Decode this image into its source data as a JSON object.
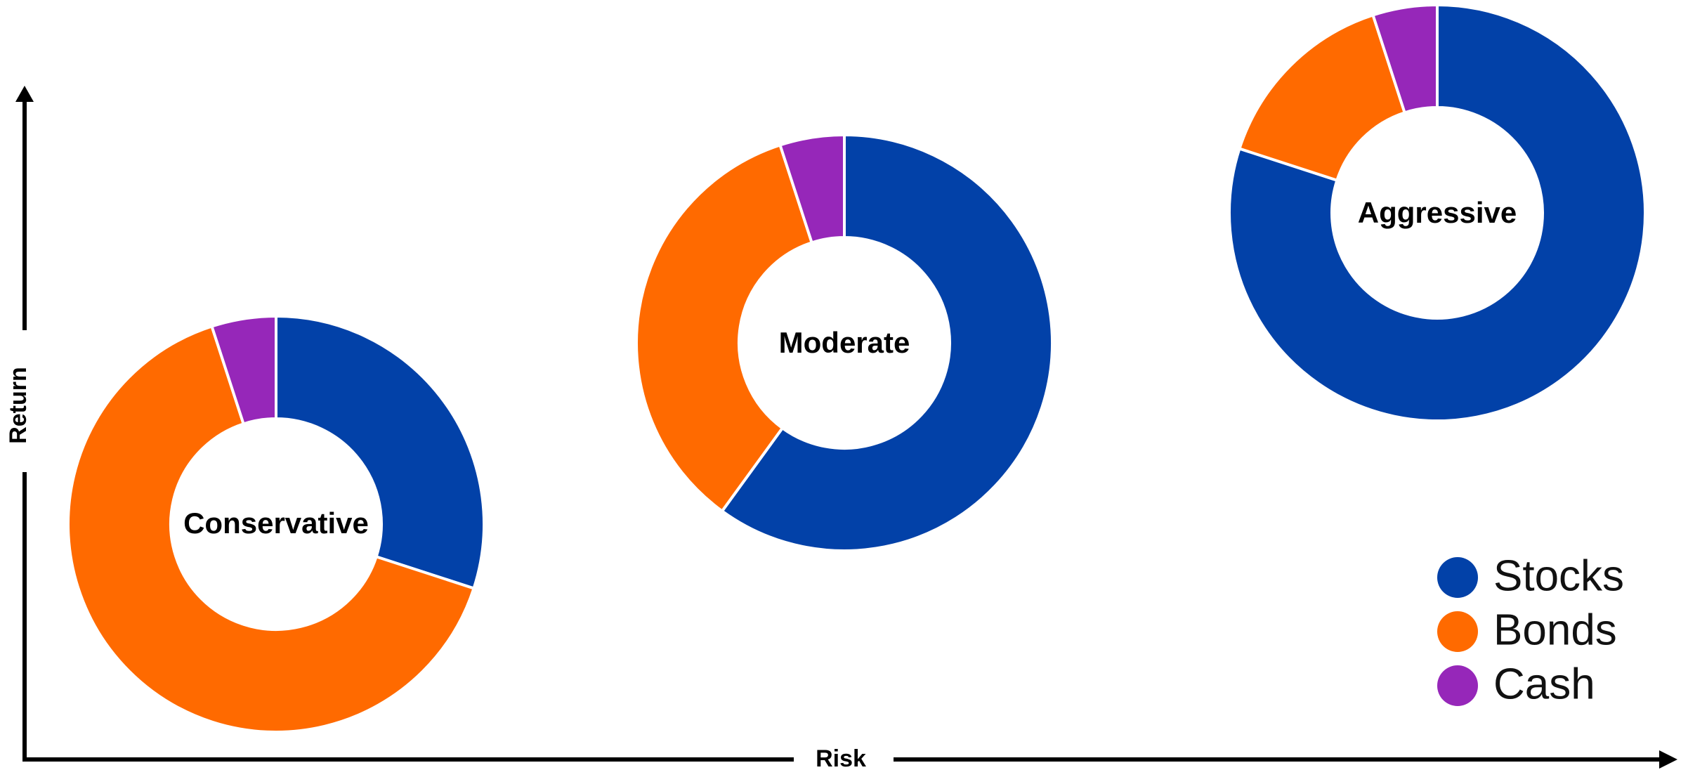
{
  "chart_data": {
    "type": "pie",
    "xlabel": "Risk",
    "ylabel": "Return",
    "legend_position": "bottom-right",
    "series": [
      {
        "name": "Stocks",
        "color": "#0241a8"
      },
      {
        "name": "Bonds",
        "color": "#ff6a00"
      },
      {
        "name": "Cash",
        "color": "#9627b9"
      }
    ],
    "portfolios": [
      {
        "label": "Conservative",
        "values": [
          30,
          65,
          5
        ]
      },
      {
        "label": "Moderate",
        "values": [
          60,
          35,
          5
        ]
      },
      {
        "label": "Aggressive",
        "values": [
          80,
          15,
          5
        ]
      }
    ]
  }
}
